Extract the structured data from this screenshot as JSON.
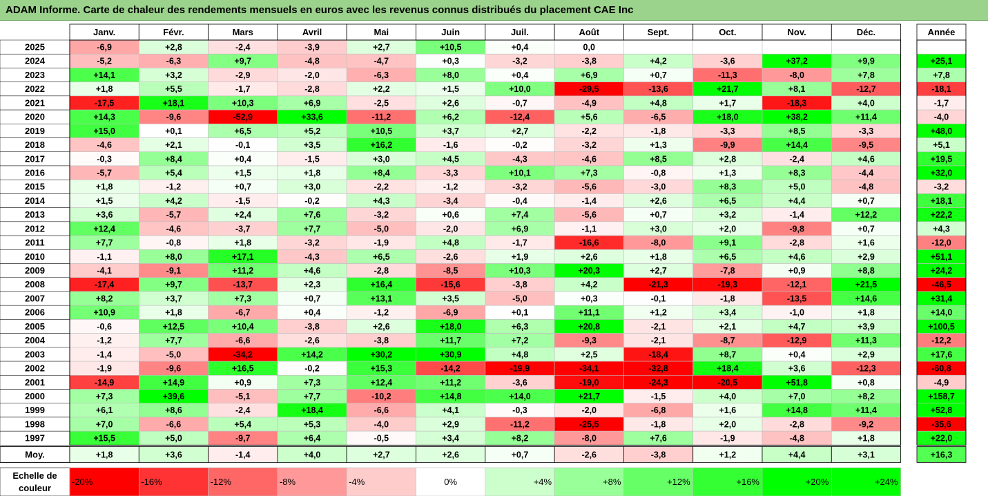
{
  "title": "ADAM Informe. Carte de chaleur des rendements mensuels en euros avec les revenus connus distribués du placement CAE Inc",
  "chart_data": {
    "type": "heatmap",
    "title": "ADAM Informe. Carte de chaleur des rendements mensuels en euros avec les revenus connus distribués du placement CAE Inc",
    "months": [
      "Janv.",
      "Févr.",
      "Mars",
      "Avril",
      "Mai",
      "Juin",
      "Juil.",
      "Août",
      "Sept.",
      "Oct.",
      "Nov.",
      "Déc."
    ],
    "year_header": "Année",
    "avg_label": "Moy.",
    "rows": [
      {
        "year": "2025",
        "values": [
          "-6,9",
          "+2,8",
          "-2,4",
          "-3,9",
          "+2,7",
          "+10,5",
          "+0,4",
          "0,0",
          "",
          "",
          "",
          ""
        ],
        "annual": ""
      },
      {
        "year": "2024",
        "values": [
          "-5,2",
          "-6,3",
          "+9,7",
          "-4,8",
          "-4,7",
          "+0,3",
          "-3,2",
          "-3,8",
          "+4,2",
          "-3,6",
          "+37,2",
          "+9,9"
        ],
        "annual": "+25,1"
      },
      {
        "year": "2023",
        "values": [
          "+14,1",
          "+3,2",
          "-2,9",
          "-2,0",
          "-6,3",
          "+8,0",
          "+0,4",
          "+6,9",
          "+0,7",
          "-11,3",
          "-8,0",
          "+7,8"
        ],
        "annual": "+7,8"
      },
      {
        "year": "2022",
        "values": [
          "+1,8",
          "+5,5",
          "-1,7",
          "-2,8",
          "+2,2",
          "+1,5",
          "+10,0",
          "-29,5",
          "-13,6",
          "+21,7",
          "+8,1",
          "-12,7"
        ],
        "annual": "-18,1"
      },
      {
        "year": "2021",
        "values": [
          "-17,5",
          "+18,1",
          "+10,3",
          "+6,9",
          "-2,5",
          "+2,6",
          "-0,7",
          "-4,9",
          "+4,8",
          "+1,7",
          "-18,3",
          "+4,0"
        ],
        "annual": "-1,7"
      },
      {
        "year": "2020",
        "values": [
          "+14,3",
          "-9,6",
          "-52,9",
          "+33,6",
          "-11,2",
          "+6,2",
          "-12,4",
          "+5,6",
          "-6,5",
          "+18,0",
          "+38,2",
          "+11,4"
        ],
        "annual": "-4,0"
      },
      {
        "year": "2019",
        "values": [
          "+15,0",
          "+0,1",
          "+6,5",
          "+5,2",
          "+10,5",
          "+3,7",
          "+2,7",
          "-2,2",
          "-1,8",
          "-3,3",
          "+8,5",
          "-3,3"
        ],
        "annual": "+48,0"
      },
      {
        "year": "2018",
        "values": [
          "-4,6",
          "+2,1",
          "-0,1",
          "+3,5",
          "+16,2",
          "-1,6",
          "-0,2",
          "-3,2",
          "+1,3",
          "-9,9",
          "+14,4",
          "-9,5"
        ],
        "annual": "+5,1"
      },
      {
        "year": "2017",
        "values": [
          "-0,3",
          "+8,4",
          "+0,4",
          "-1,5",
          "+3,0",
          "+4,5",
          "-4,3",
          "-4,6",
          "+8,5",
          "+2,8",
          "-2,4",
          "+4,6"
        ],
        "annual": "+19,5"
      },
      {
        "year": "2016",
        "values": [
          "-5,7",
          "+5,4",
          "+1,5",
          "+1,8",
          "+8,4",
          "-3,3",
          "+10,1",
          "+7,3",
          "-0,8",
          "+1,3",
          "+8,3",
          "-4,4"
        ],
        "annual": "+32,0"
      },
      {
        "year": "2015",
        "values": [
          "+1,8",
          "-1,2",
          "+0,7",
          "+3,0",
          "-2,2",
          "-1,2",
          "-3,2",
          "-5,6",
          "-3,0",
          "+8,3",
          "+5,0",
          "-4,8"
        ],
        "annual": "-3,2"
      },
      {
        "year": "2014",
        "values": [
          "+1,5",
          "+4,2",
          "-1,5",
          "-0,2",
          "+4,3",
          "-3,4",
          "-0,4",
          "-1,4",
          "+2,6",
          "+6,5",
          "+4,4",
          "+0,7"
        ],
        "annual": "+18,1"
      },
      {
        "year": "2013",
        "values": [
          "+3,6",
          "-5,7",
          "+2,4",
          "+7,6",
          "-3,2",
          "+0,6",
          "+7,4",
          "-5,6",
          "+0,7",
          "+3,2",
          "-1,4",
          "+12,2"
        ],
        "annual": "+22,2"
      },
      {
        "year": "2012",
        "values": [
          "+12,4",
          "-4,6",
          "-3,7",
          "+7,7",
          "-5,0",
          "-2,0",
          "+6,9",
          "-1,1",
          "+3,0",
          "+2,0",
          "-9,8",
          "+0,7"
        ],
        "annual": "+4,3"
      },
      {
        "year": "2011",
        "values": [
          "+7,7",
          "-0,8",
          "+1,8",
          "-3,2",
          "-1,9",
          "+4,8",
          "-1,7",
          "-16,6",
          "-8,0",
          "+9,1",
          "-2,8",
          "+1,6"
        ],
        "annual": "-12,0"
      },
      {
        "year": "2010",
        "values": [
          "-1,1",
          "+8,0",
          "+17,1",
          "-4,3",
          "+6,5",
          "-2,6",
          "+1,9",
          "+2,6",
          "+1,8",
          "+6,5",
          "+4,6",
          "+2,9"
        ],
        "annual": "+51,1"
      },
      {
        "year": "2009",
        "values": [
          "-4,1",
          "-9,1",
          "+11,2",
          "+4,6",
          "-2,8",
          "-8,5",
          "+10,3",
          "+20,3",
          "+2,7",
          "-7,8",
          "+0,9",
          "+8,8"
        ],
        "annual": "+24,2"
      },
      {
        "year": "2008",
        "values": [
          "-17,4",
          "+9,7",
          "-13,7",
          "+2,3",
          "+16,4",
          "-15,6",
          "-3,8",
          "+4,2",
          "-21,3",
          "-19,3",
          "-12,1",
          "+21,5"
        ],
        "annual": "-46,5"
      },
      {
        "year": "2007",
        "values": [
          "+8,2",
          "+3,7",
          "+7,3",
          "+0,7",
          "+13,1",
          "+3,5",
          "-5,0",
          "+0,3",
          "-0,1",
          "-1,8",
          "-13,5",
          "+14,6"
        ],
        "annual": "+31,4"
      },
      {
        "year": "2006",
        "values": [
          "+10,9",
          "+1,8",
          "-6,7",
          "+0,4",
          "-1,2",
          "-6,9",
          "+0,1",
          "+11,1",
          "+1,2",
          "+3,4",
          "-1,0",
          "+1,8"
        ],
        "annual": "+14,0"
      },
      {
        "year": "2005",
        "values": [
          "-0,6",
          "+12,5",
          "+10,4",
          "-3,8",
          "+2,6",
          "+18,0",
          "+6,3",
          "+20,8",
          "-2,1",
          "+2,1",
          "+4,7",
          "+3,9"
        ],
        "annual": "+100,5"
      },
      {
        "year": "2004",
        "values": [
          "-1,2",
          "+7,7",
          "-6,6",
          "-2,6",
          "-3,8",
          "+11,7",
          "+7,2",
          "-9,3",
          "-2,1",
          "-8,7",
          "-12,9",
          "+11,3"
        ],
        "annual": "-12,2"
      },
      {
        "year": "2003",
        "values": [
          "-1,4",
          "-5,0",
          "-34,2",
          "+14,2",
          "+30,2",
          "+30,9",
          "+4,8",
          "+2,5",
          "-18,4",
          "+8,7",
          "+0,4",
          "+2,9"
        ],
        "annual": "+17,6"
      },
      {
        "year": "2002",
        "values": [
          "-1,9",
          "-9,6",
          "+16,5",
          "-0,2",
          "+15,3",
          "-14,2",
          "-19,9",
          "-34,1",
          "-32,8",
          "+18,4",
          "+3,6",
          "-12,3"
        ],
        "annual": "-60,8"
      },
      {
        "year": "2001",
        "values": [
          "-14,9",
          "+14,9",
          "+0,9",
          "+7,3",
          "+12,4",
          "+11,2",
          "-3,6",
          "-19,0",
          "-24,3",
          "-20,5",
          "+51,8",
          "+0,8"
        ],
        "annual": "-4,9"
      },
      {
        "year": "2000",
        "values": [
          "+7,3",
          "+39,6",
          "-5,1",
          "+7,7",
          "-10,2",
          "+14,8",
          "+14,0",
          "+21,7",
          "-1,5",
          "+4,0",
          "+7,0",
          "+8,2"
        ],
        "annual": "+158,7"
      },
      {
        "year": "1999",
        "values": [
          "+6,1",
          "+8,6",
          "-2,4",
          "+18,4",
          "-6,6",
          "+4,1",
          "-0,3",
          "-2,0",
          "-6,8",
          "+1,6",
          "+14,8",
          "+11,4"
        ],
        "annual": "+52,8"
      },
      {
        "year": "1998",
        "values": [
          "+7,0",
          "-6,6",
          "+5,4",
          "+5,3",
          "-4,0",
          "+2,9",
          "-11,2",
          "-25,5",
          "-1,8",
          "+2,0",
          "-2,8",
          "-9,2"
        ],
        "annual": "-35,6"
      },
      {
        "year": "1997",
        "values": [
          "+15,5",
          "+5,0",
          "-9,7",
          "+6,4",
          "-0,5",
          "+3,4",
          "+8,2",
          "-8,0",
          "+7,6",
          "-1,9",
          "-4,8",
          "+1,8"
        ],
        "annual": "+22,0"
      }
    ],
    "averages": [
      "+1,8",
      "+3,6",
      "-1,4",
      "+4,0",
      "+2,7",
      "+2,6",
      "+0,7",
      "-2,6",
      "-3,8",
      "+1,2",
      "+4,4",
      "+3,1"
    ],
    "average_annual": "+16,3",
    "legend": {
      "title_line1": "Echelle de",
      "title_line2": "couleur",
      "items": [
        {
          "label": "-20%",
          "color": "#ff0000"
        },
        {
          "label": "-16%",
          "color": "#ff3333"
        },
        {
          "label": "-12%",
          "color": "#ff6666"
        },
        {
          "label": "-8%",
          "color": "#ff9999"
        },
        {
          "label": "-4%",
          "color": "#ffcccc"
        },
        {
          "label": "0%",
          "color": "#ffffff"
        },
        {
          "label": "+4%",
          "color": "#ccffcc"
        },
        {
          "label": "+8%",
          "color": "#99ff99"
        },
        {
          "label": "+12%",
          "color": "#66ff66"
        },
        {
          "label": "+16%",
          "color": "#33ff33"
        },
        {
          "label": "+20%",
          "color": "#00ff00"
        },
        {
          "label": "+24%",
          "color": "#00ff00"
        }
      ]
    },
    "colors": {
      "title_bg": "#9bd28c",
      "negative_max": "#ff0000",
      "neutral": "#ffffff",
      "positive_max": "#00ff00"
    }
  }
}
